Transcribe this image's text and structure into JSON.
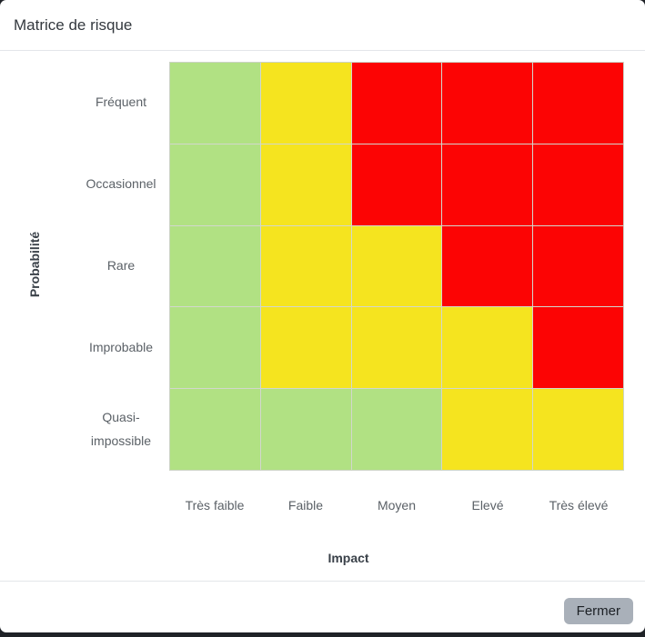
{
  "dialog": {
    "title": "Matrice de risque",
    "close_label": "Fermer"
  },
  "chart_data": {
    "type": "heatmap",
    "title": "Matrice de risque",
    "xlabel": "Impact",
    "ylabel": "Probabilité",
    "x_categories": [
      "Très faible",
      "Faible",
      "Moyen",
      "Elevé",
      "Très élevé"
    ],
    "y_categories": [
      "Fréquent",
      "Occasionnel",
      "Rare",
      "Improbable",
      "Quasi-impossible"
    ],
    "cell_levels": [
      [
        "green",
        "yellow",
        "red",
        "red",
        "red"
      ],
      [
        "green",
        "yellow",
        "red",
        "red",
        "red"
      ],
      [
        "green",
        "yellow",
        "yellow",
        "red",
        "red"
      ],
      [
        "green",
        "yellow",
        "yellow",
        "yellow",
        "red"
      ],
      [
        "green",
        "green",
        "green",
        "yellow",
        "yellow"
      ]
    ],
    "level_colors": {
      "green": "#b1e183",
      "yellow": "#f5e41f",
      "red": "#fc0404"
    },
    "legend": "none",
    "grid_line_color": "#d2d7cd"
  }
}
